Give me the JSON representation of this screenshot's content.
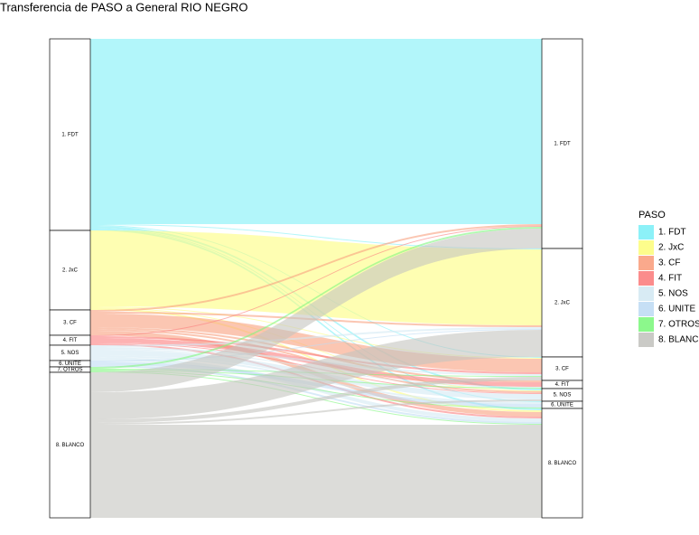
{
  "chart_data": {
    "type": "alluvial",
    "title": "Transferencia de PASO a General RIO NEGRO",
    "legend_title": "PASO",
    "categories": [
      "1. FDT",
      "2. JxC",
      "3. CF",
      "4. FIT",
      "5. NOS",
      "6. UNITE",
      "7. OTROS",
      "8. BLANCO"
    ],
    "colors": [
      "#7ff0f7",
      "#fdfd7f",
      "#f9a07f",
      "#fb7f7f",
      "#d4e9f3",
      "#c0dcf4",
      "#80f77f",
      "#c4c4c0"
    ],
    "flows": [
      {
        "source": 0,
        "target": 0,
        "value": 205
      },
      {
        "source": 0,
        "target": 1,
        "value": 1
      },
      {
        "source": 0,
        "target": 2,
        "value": 1
      },
      {
        "source": 0,
        "target": 4,
        "value": 2
      },
      {
        "source": 0,
        "target": 5,
        "value": 1
      },
      {
        "source": 0,
        "target": 7,
        "value": 2
      },
      {
        "source": 1,
        "target": 1,
        "value": 84
      },
      {
        "source": 1,
        "target": 2,
        "value": 1
      },
      {
        "source": 1,
        "target": 4,
        "value": 1
      },
      {
        "source": 1,
        "target": 7,
        "value": 2
      },
      {
        "source": 2,
        "target": 0,
        "value": 2
      },
      {
        "source": 2,
        "target": 1,
        "value": 2
      },
      {
        "source": 2,
        "target": 2,
        "value": 15
      },
      {
        "source": 2,
        "target": 3,
        "value": 2
      },
      {
        "source": 2,
        "target": 4,
        "value": 2
      },
      {
        "source": 2,
        "target": 7,
        "value": 5
      },
      {
        "source": 3,
        "target": 0,
        "value": 1
      },
      {
        "source": 3,
        "target": 2,
        "value": 2
      },
      {
        "source": 3,
        "target": 3,
        "value": 5
      },
      {
        "source": 3,
        "target": 4,
        "value": 1
      },
      {
        "source": 3,
        "target": 7,
        "value": 2
      },
      {
        "source": 4,
        "target": 1,
        "value": 2
      },
      {
        "source": 4,
        "target": 2,
        "value": 2
      },
      {
        "source": 4,
        "target": 3,
        "value": 1
      },
      {
        "source": 4,
        "target": 4,
        "value": 6
      },
      {
        "source": 4,
        "target": 5,
        "value": 2
      },
      {
        "source": 4,
        "target": 7,
        "value": 4
      },
      {
        "source": 5,
        "target": 1,
        "value": 1
      },
      {
        "source": 5,
        "target": 5,
        "value": 4
      },
      {
        "source": 5,
        "target": 7,
        "value": 2
      },
      {
        "source": 6,
        "target": 0,
        "value": 2
      },
      {
        "source": 6,
        "target": 2,
        "value": 1
      },
      {
        "source": 6,
        "target": 3,
        "value": 1
      },
      {
        "source": 6,
        "target": 5,
        "value": 1
      },
      {
        "source": 6,
        "target": 7,
        "value": 1
      },
      {
        "source": 7,
        "target": 0,
        "value": 22
      },
      {
        "source": 7,
        "target": 1,
        "value": 30
      },
      {
        "source": 7,
        "target": 2,
        "value": 4
      },
      {
        "source": 7,
        "target": 4,
        "value": 2
      },
      {
        "source": 7,
        "target": 7,
        "value": 103
      }
    ]
  }
}
